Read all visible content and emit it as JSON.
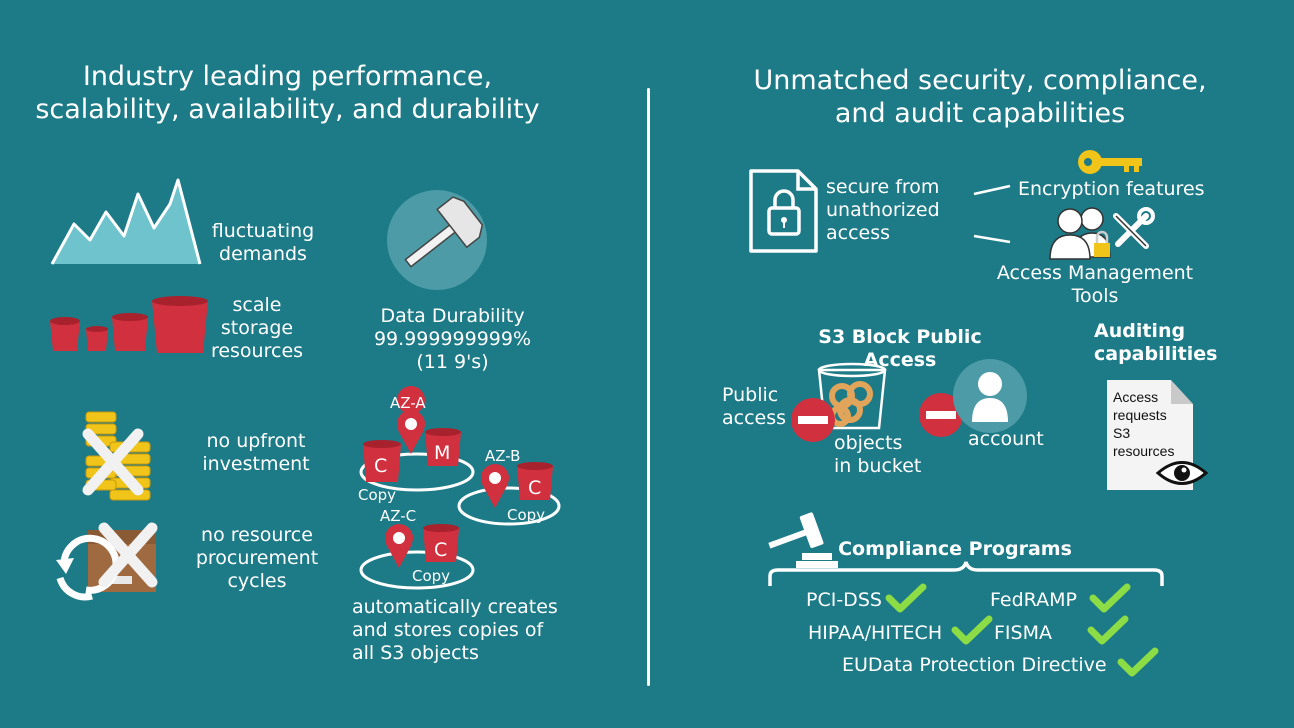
{
  "left": {
    "title_line1": "Industry leading performance,",
    "title_line2": "scalability, availability, and durability",
    "fluctuating_line1": "fluctuating",
    "fluctuating_line2": "demands",
    "scale_line1": "scale",
    "scale_line2": "storage",
    "scale_line3": "resources",
    "upfront_line1": "no upfront",
    "upfront_line2": "investment",
    "procure_line1": "no resource",
    "procure_line2": "procurement",
    "procure_line3": "cycles",
    "durability_label": "Data Durability",
    "durability_value": "99.999999999%",
    "durability_nines": "(11 9's)",
    "az_a": "AZ-A",
    "az_b": "AZ-B",
    "az_c": "AZ-C",
    "bucket_c": "C",
    "bucket_m": "M",
    "copy_label": "Copy",
    "copies_line1": "automatically creates",
    "copies_line2": "and stores copies of",
    "copies_line3": "all S3 objects"
  },
  "right": {
    "title_line1": "Unmatched security, compliance,",
    "title_line2": "and audit capabilities",
    "secure_line1": "secure from",
    "secure_line2": "unathorized",
    "secure_line3": "access",
    "encryption": "Encryption features",
    "access_mgmt_line1": "Access Management",
    "access_mgmt_line2": "Tools",
    "block_public": "S3 Block Public Access",
    "public_line1": "Public",
    "public_line2": "access",
    "objects_line1": "objects",
    "objects_line2": "in bucket",
    "account": "account",
    "auditing_line1": "Auditing",
    "auditing_line2": "capabilities",
    "note_lines": [
      "Access",
      "requests",
      "S3",
      "resources"
    ],
    "compliance_title": "Compliance Programs",
    "programs": {
      "pci": "PCI-DSS",
      "fedramp": "FedRAMP",
      "hipaa": "HIPAA/HITECH",
      "fisma": "FISMA",
      "eudata": "EUData Protection Directive"
    }
  },
  "colors": {
    "background": "#1d7a87",
    "bucket_red": "#d1303e",
    "check_green": "#8cdc45",
    "gold": "#f0c419"
  },
  "icons": {
    "mountain": "line-peaks-icon",
    "buckets": "bucket-icon",
    "hammer": "hammer-icon",
    "coins": "coin-stack-icon",
    "box": "box-icon",
    "pin": "location-pin-icon",
    "document": "locked-document-icon",
    "key": "key-icon",
    "users": "users-icon",
    "tools": "tools-icon",
    "minus": "no-entry-icon",
    "user": "user-icon",
    "eye": "eye-icon",
    "gavel": "gavel-icon",
    "check": "check-icon"
  }
}
